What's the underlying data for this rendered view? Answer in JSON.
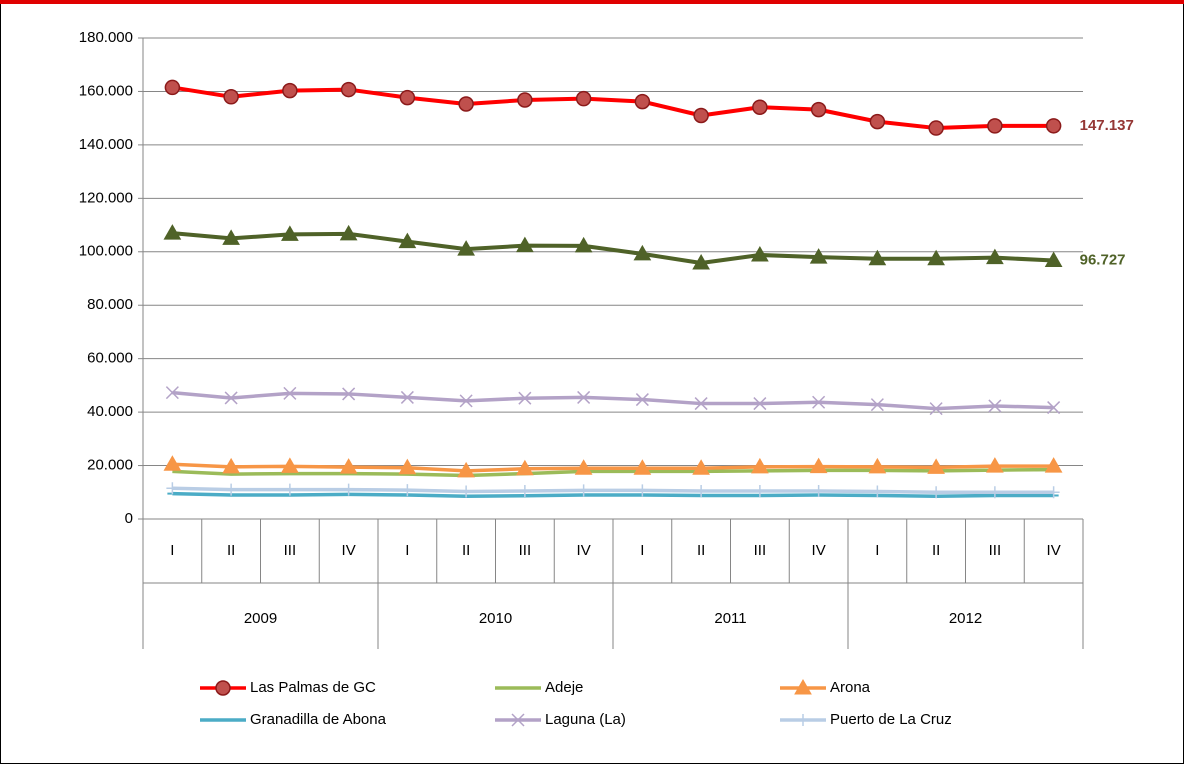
{
  "chart_data": {
    "type": "line",
    "categories": [
      "I",
      "II",
      "III",
      "IV",
      "I",
      "II",
      "III",
      "IV",
      "I",
      "II",
      "III",
      "IV",
      "I",
      "II",
      "III",
      "IV"
    ],
    "years": [
      "2009",
      "2010",
      "2011",
      "2012"
    ],
    "ylim": [
      0,
      180000
    ],
    "yticks": [
      0,
      {
        "value": 20000,
        "label": "20.000"
      },
      {
        "value": 40000,
        "label": "40.000"
      },
      {
        "value": 60000,
        "label": "60.000"
      },
      {
        "value": 80000,
        "label": "80.000"
      },
      {
        "value": 100000,
        "label": "100.000"
      },
      {
        "value": 120000,
        "label": "120.000"
      },
      {
        "value": 140000,
        "label": "140.000"
      },
      {
        "value": 160000,
        "label": "160.000"
      },
      {
        "value": 180000,
        "label": "180.000"
      }
    ],
    "grid": true,
    "series": [
      {
        "name": "Las Palmas de GC",
        "color": "#ff0000",
        "marker": "circle",
        "values": [
          161500,
          158000,
          160300,
          160700,
          157700,
          155300,
          156800,
          157300,
          156200,
          151000,
          154100,
          153200,
          148700,
          146300,
          147100,
          147137
        ],
        "end_label": "147.137",
        "end_label_color": "#953735"
      },
      {
        "color": "#4f6228",
        "marker": "triangle",
        "values": [
          107000,
          105000,
          106500,
          106700,
          103800,
          101000,
          102300,
          102200,
          99200,
          95800,
          98800,
          98000,
          97400,
          97400,
          97800,
          96727
        ],
        "end_label": "96.727",
        "end_label_color": "#4f6228"
      },
      {
        "name": "Adeje",
        "color": "#9bbb59",
        "marker": "none",
        "values": [
          17800,
          16800,
          17000,
          17000,
          16800,
          16300,
          17000,
          17800,
          17800,
          17800,
          18000,
          18200,
          18200,
          18000,
          18300,
          18500
        ]
      },
      {
        "name": "Arona",
        "color": "#f79646",
        "marker": "triangle",
        "values": [
          20500,
          19500,
          19700,
          19400,
          19200,
          18000,
          18800,
          19000,
          19000,
          19000,
          19500,
          19600,
          19500,
          19300,
          19800,
          19800
        ]
      },
      {
        "name": "Granadilla de Abona",
        "color": "#4bacc6",
        "marker": "dash",
        "values": [
          9500,
          9000,
          9000,
          9200,
          9000,
          8500,
          8700,
          9000,
          9000,
          8800,
          8800,
          9000,
          8800,
          8500,
          8800,
          8800
        ]
      },
      {
        "name": "Laguna (La)",
        "color": "#b3a2c7",
        "marker": "x",
        "values": [
          47300,
          45300,
          47000,
          46800,
          45500,
          44200,
          45200,
          45500,
          44700,
          43200,
          43200,
          43700,
          42800,
          41300,
          42300,
          41700
        ]
      },
      {
        "name": "Puerto de La Cruz",
        "color": "#b9cde5",
        "marker": "plus",
        "values": [
          11500,
          11000,
          11000,
          11000,
          10800,
          10300,
          10500,
          10700,
          10700,
          10500,
          10500,
          10500,
          10300,
          10000,
          10000,
          10000
        ]
      }
    ]
  }
}
